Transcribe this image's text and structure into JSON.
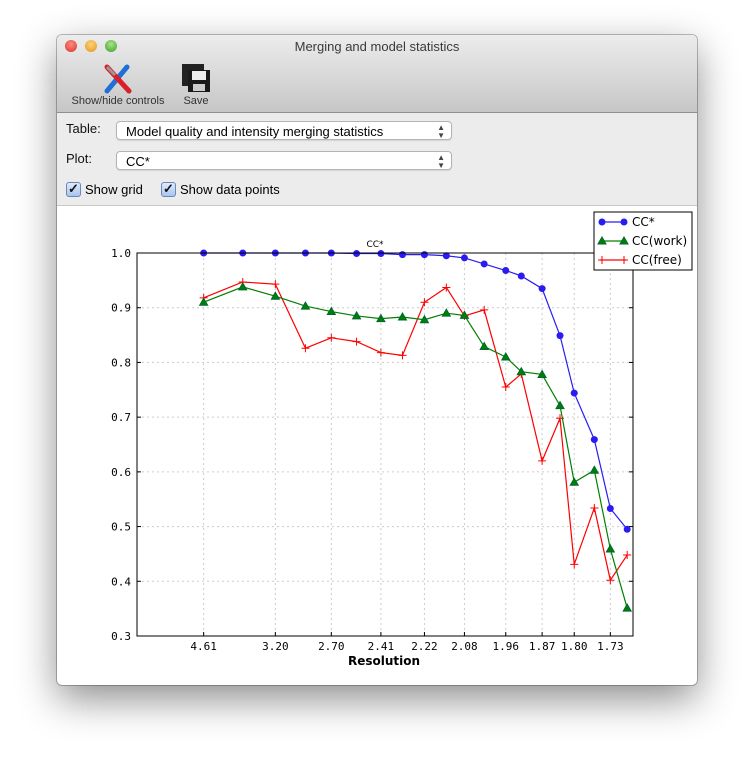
{
  "window": {
    "title": "Merging and model statistics"
  },
  "toolbar": {
    "items": [
      {
        "label": "Show/hide controls",
        "icon": "tools-icon"
      },
      {
        "label": "Save",
        "icon": "floppy-disk-icon"
      }
    ]
  },
  "controls": {
    "table_label": "Table:",
    "table_value": "Model quality and intensity merging statistics",
    "plot_label": "Plot:",
    "plot_value": "CC*",
    "show_grid_label": "Show grid",
    "show_grid": true,
    "show_points_label": "Show data points",
    "show_points": true
  },
  "chart_data": {
    "type": "line",
    "title": "CC*",
    "xlabel": "Resolution",
    "ylabel": "",
    "x_scale": "inverse-square of resolution (1/d^2)",
    "xlim": [
      null,
      1.69
    ],
    "ylim": [
      0.3,
      1.0
    ],
    "grid": true,
    "legend_position": "top-right",
    "x_ticks": [
      "4.61",
      "3.20",
      "2.70",
      "2.41",
      "2.22",
      "2.08",
      "1.96",
      "1.87",
      "1.80",
      "1.73"
    ],
    "y_ticks": [
      "0.3",
      "0.4",
      "0.5",
      "0.6",
      "0.7",
      "0.8",
      "0.9",
      "1.0"
    ],
    "x": [
      4.61,
      3.66,
      3.2,
      2.9,
      2.7,
      2.54,
      2.41,
      2.31,
      2.22,
      2.14,
      2.08,
      2.02,
      1.96,
      1.92,
      1.87,
      1.83,
      1.8,
      1.76,
      1.73,
      1.7
    ],
    "series": [
      {
        "name": "CC*",
        "color": "#2a1cf0",
        "marker": "circle",
        "values": [
          1.0,
          1.0,
          1.0,
          1.0,
          1.0,
          0.999,
          0.999,
          0.997,
          0.997,
          0.995,
          0.991,
          0.98,
          0.968,
          0.958,
          0.935,
          0.849,
          0.744,
          0.659,
          0.533,
          0.495
        ]
      },
      {
        "name": "CC(work)",
        "color": "#008000",
        "marker": "triangle",
        "values": [
          0.91,
          0.938,
          0.921,
          0.903,
          0.893,
          0.885,
          0.88,
          0.883,
          0.878,
          0.89,
          0.886,
          0.829,
          0.81,
          0.783,
          0.778,
          0.721,
          0.581,
          0.603,
          0.459,
          0.351
        ]
      },
      {
        "name": "CC(free)",
        "color": "#ff0000",
        "marker": "plus",
        "values": [
          0.918,
          0.947,
          0.943,
          0.826,
          0.845,
          0.838,
          0.818,
          0.813,
          0.91,
          0.937,
          0.885,
          0.896,
          0.755,
          0.779,
          0.62,
          0.698,
          0.431,
          0.534,
          0.402,
          0.448
        ]
      }
    ]
  }
}
